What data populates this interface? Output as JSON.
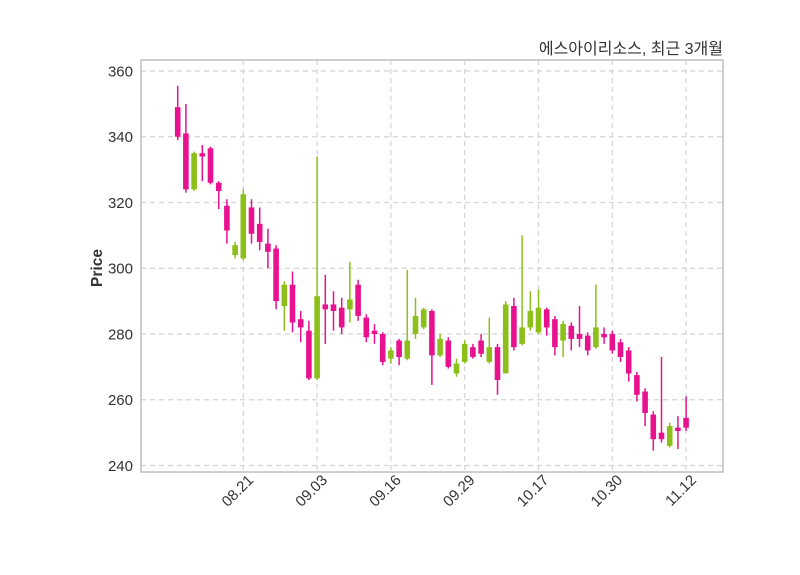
{
  "title": "에스아이리소스, 최근 3개월",
  "chart_data": {
    "type": "candlestick",
    "title": "에스아이리소스, 최근 3개월",
    "ylabel": "Price",
    "ylim": [
      238,
      363
    ],
    "grid": "dashed",
    "legend_position": "none",
    "y_ticks": [
      360,
      340,
      320,
      300,
      280,
      260,
      240
    ],
    "x_tick_labels": [
      "08.21",
      "09.03",
      "09.16",
      "09.29",
      "10.17",
      "10.30",
      "11.12"
    ],
    "x_tick_indices": [
      8,
      17,
      26,
      35,
      44,
      53,
      62
    ],
    "n_candles": 63,
    "colors": {
      "up_body": "#8cbf1a",
      "down_body": "#e8128f",
      "grid": "#d4d4d4",
      "border": "#c8c8c8",
      "text": "#333333"
    },
    "candles_ohlc_columns": [
      "open",
      "high",
      "low",
      "close"
    ],
    "candles_ohlc": [
      [
        349,
        355.5,
        339,
        340
      ],
      [
        341,
        350,
        323,
        324
      ],
      [
        324,
        335.5,
        323.5,
        335
      ],
      [
        335,
        337.5,
        326.5,
        334
      ],
      [
        336.5,
        337,
        325.5,
        326
      ],
      [
        326,
        326.5,
        318,
        323.5
      ],
      [
        319,
        321,
        307.5,
        311.5
      ],
      [
        304,
        308,
        303,
        307
      ],
      [
        303,
        324,
        302.5,
        322.5
      ],
      [
        318.5,
        321,
        307.5,
        310.5
      ],
      [
        313.5,
        318.5,
        305.5,
        308
      ],
      [
        307.5,
        312,
        300,
        305
      ],
      [
        306,
        307,
        287.5,
        290
      ],
      [
        288.5,
        296,
        281,
        295
      ],
      [
        295,
        299,
        280.5,
        283.5
      ],
      [
        284.5,
        287,
        277.5,
        282
      ],
      [
        281,
        284,
        266,
        266.5
      ],
      [
        266.5,
        334,
        266,
        291.5
      ],
      [
        289,
        298,
        277,
        287.5
      ],
      [
        289,
        293,
        281,
        287
      ],
      [
        288,
        291,
        280,
        282
      ],
      [
        287.5,
        302,
        283.5,
        290.5
      ],
      [
        295,
        296.5,
        284,
        285.5
      ],
      [
        285,
        286,
        277.5,
        279
      ],
      [
        281,
        283,
        277,
        280
      ],
      [
        280,
        280.5,
        270.5,
        271.5
      ],
      [
        272.5,
        276,
        271,
        275
      ],
      [
        278,
        278.5,
        270.5,
        273
      ],
      [
        272.5,
        299.5,
        272,
        278
      ],
      [
        280,
        291,
        278.5,
        285.5
      ],
      [
        282,
        288,
        281.5,
        287.5
      ],
      [
        287,
        287.5,
        264.5,
        273.5
      ],
      [
        273.5,
        280,
        273,
        278.5
      ],
      [
        278,
        279,
        269.5,
        270
      ],
      [
        268,
        272.5,
        267,
        271
      ],
      [
        271.5,
        278,
        271,
        277
      ],
      [
        276,
        277,
        272.5,
        273
      ],
      [
        278,
        280,
        273,
        274
      ],
      [
        271.5,
        285,
        271,
        276
      ],
      [
        276,
        277,
        261.5,
        266
      ],
      [
        268,
        290,
        268,
        289
      ],
      [
        288.5,
        291,
        275,
        276
      ],
      [
        277,
        310,
        276.5,
        282
      ],
      [
        282,
        293,
        281,
        287
      ],
      [
        280.5,
        293.5,
        280,
        288
      ],
      [
        287.5,
        288,
        279.5,
        282
      ],
      [
        284.5,
        285.5,
        273.5,
        276
      ],
      [
        278,
        284,
        273,
        283
      ],
      [
        282.5,
        283.5,
        275,
        278.5
      ],
      [
        280,
        288.5,
        276,
        278.5
      ],
      [
        279.5,
        280.5,
        273.5,
        275
      ],
      [
        276,
        295,
        275.5,
        282
      ],
      [
        280,
        282,
        277,
        279
      ],
      [
        280,
        281,
        274,
        275
      ],
      [
        277.5,
        278.5,
        271.5,
        273
      ],
      [
        275,
        276,
        265.5,
        268
      ],
      [
        267.5,
        268.5,
        259.5,
        261.5
      ],
      [
        262.5,
        263.5,
        252,
        256
      ],
      [
        255.5,
        256.5,
        244.5,
        248
      ],
      [
        250,
        273,
        247,
        248
      ],
      [
        246,
        253,
        245.5,
        252
      ],
      [
        251.5,
        255,
        245,
        250.5
      ],
      [
        254.5,
        261,
        250.5,
        251.5
      ]
    ]
  }
}
